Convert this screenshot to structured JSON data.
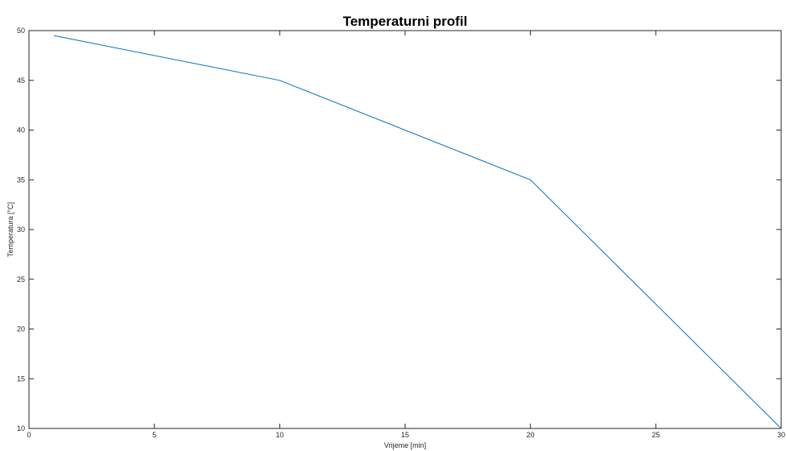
{
  "chart_data": {
    "type": "line",
    "title": "Temperaturni profil",
    "xlabel": "Vrijeme [min]",
    "ylabel": "Temperatura [°C]",
    "xlim": [
      0,
      30
    ],
    "ylim": [
      10,
      50
    ],
    "xticks": [
      0,
      5,
      10,
      15,
      20,
      25,
      30
    ],
    "yticks": [
      10,
      15,
      20,
      25,
      30,
      35,
      40,
      45,
      50
    ],
    "grid": false,
    "box": true,
    "series": [
      {
        "color": "#0072BD",
        "x": [
          1,
          10,
          20,
          30
        ],
        "y": [
          49.5,
          45,
          35,
          10
        ]
      }
    ]
  }
}
